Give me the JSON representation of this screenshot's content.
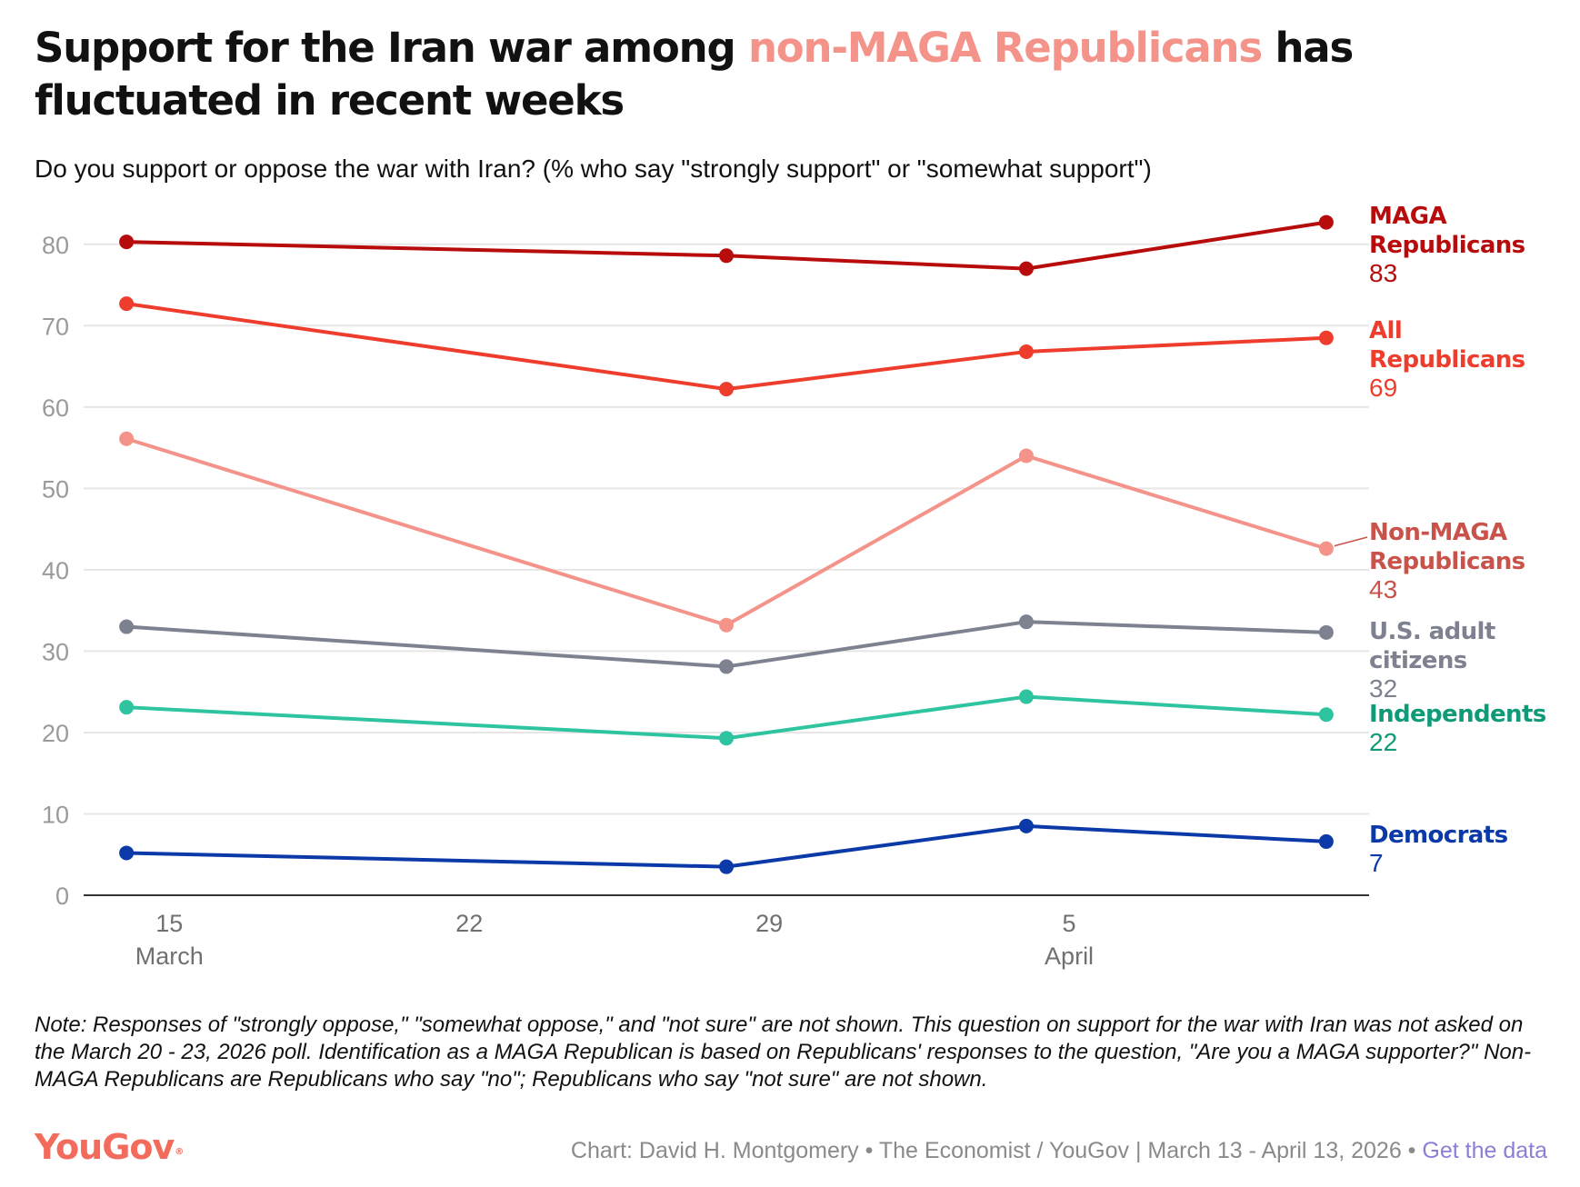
{
  "title": {
    "before": "Support for the Iran war among ",
    "highlight": "non-MAGA Republicans",
    "after": " has fluctuated in recent weeks"
  },
  "subtitle": "Do you support or oppose the war with Iran? (% who say \"strongly support\" or \"somewhat support\")",
  "note": "Note: Responses of \"strongly oppose,\" \"somewhat oppose,\" and \"not sure\" are not shown. This question on support for the war with Iran was not asked on the March 20 - 23, 2026 poll. Identification as a MAGA Republican is based on Republicans' responses to the question, \"Are you a MAGA supporter?\" Non-MAGA Republicans are Republicans who say \"no\"; Republicans who say \"not sure\" are not shown.",
  "footer": {
    "logo": "YouGov",
    "logo_mark": "®",
    "credit": "Chart: David H. Montgomery • The Economist / YouGov | March 13 - April 13, 2026 • ",
    "link_label": "Get the data"
  },
  "colors": {
    "maga": "#b80c0c",
    "all_rep": "#ee3d2c",
    "non_maga": "#f4938a",
    "non_maga_label": "#c9524a",
    "us_adults": "#7d8190",
    "independents": "#2ec4a0",
    "independents_label": "#0f9a78",
    "democrats": "#0b3aa8",
    "highlight": "#f4938a",
    "logo": "#f26b5c",
    "link": "#8b7fd4"
  },
  "chart_data": {
    "type": "line",
    "x_unit": "date",
    "x": [
      "2026-03-14",
      "2026-03-28",
      "2026-04-04",
      "2026-04-11"
    ],
    "xlim": [
      "2026-03-13",
      "2026-04-12"
    ],
    "ylim": [
      0,
      85
    ],
    "yticks": [
      0,
      10,
      20,
      30,
      40,
      50,
      60,
      70,
      80
    ],
    "xticks": [
      {
        "date": "2026-03-15",
        "day": "15",
        "month": "March"
      },
      {
        "date": "2026-03-22",
        "day": "22",
        "month": ""
      },
      {
        "date": "2026-03-29",
        "day": "29",
        "month": ""
      },
      {
        "date": "2026-04-05",
        "day": "5",
        "month": "April"
      }
    ],
    "grid": true,
    "legend": "direct labels at right end of lines",
    "series": [
      {
        "name_lines": [
          "MAGA",
          "Republicans"
        ],
        "end_label": "83",
        "color_key": "maga",
        "label_color_key": "maga",
        "values": [
          80.3,
          78.6,
          77.0,
          82.7
        ]
      },
      {
        "name_lines": [
          "All",
          "Republicans"
        ],
        "end_label": "69",
        "color_key": "all_rep",
        "label_color_key": "all_rep",
        "values": [
          72.7,
          62.2,
          66.8,
          68.5
        ]
      },
      {
        "name_lines": [
          "Non-MAGA",
          "Republicans"
        ],
        "end_label": "43",
        "color_key": "non_maga",
        "label_color_key": "non_maga_label",
        "values": [
          56.1,
          33.2,
          54.0,
          42.6
        ]
      },
      {
        "name_lines": [
          "U.S. adult",
          "citizens"
        ],
        "end_label": "32",
        "color_key": "us_adults",
        "label_color_key": "us_adults",
        "values": [
          33.0,
          28.1,
          33.6,
          32.3
        ]
      },
      {
        "name_lines": [
          "Independents"
        ],
        "end_label": "22",
        "color_key": "independents",
        "label_color_key": "independents_label",
        "values": [
          23.1,
          19.3,
          24.4,
          22.2
        ]
      },
      {
        "name_lines": [
          "Democrats"
        ],
        "end_label": "7",
        "color_key": "democrats",
        "label_color_key": "democrats",
        "values": [
          5.2,
          3.5,
          8.5,
          6.6
        ]
      }
    ]
  }
}
